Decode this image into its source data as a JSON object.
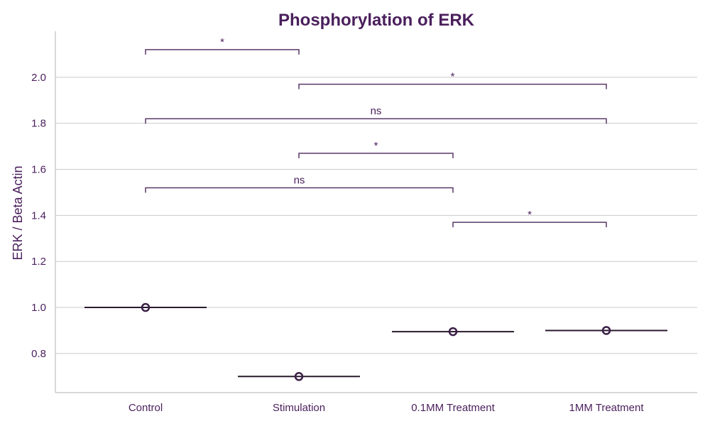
{
  "colors": {
    "text": "#4a1f5c",
    "grid": "#cccccc",
    "axis": "#cccccc",
    "median": "#2a1a2e",
    "marker": "#3a1f46",
    "bracket": "#5a3868"
  },
  "chart_data": {
    "type": "box",
    "title": "Phosphorylation of ERK",
    "xlabel": "",
    "ylabel": "ERK / Beta Actin",
    "categories": [
      "Control",
      "Stimulation",
      "0.1MM Treatment",
      "1MM Treatment"
    ],
    "values": [
      1.0,
      0.7,
      0.895,
      0.9
    ],
    "ylim": [
      0.63,
      2.2
    ],
    "yticks": [
      0.8,
      1.0,
      1.2,
      1.4,
      1.6,
      1.8,
      2.0
    ],
    "grid": "horizontal",
    "marker": "open-circle",
    "significance": [
      {
        "from": 0,
        "to": 1,
        "y": 2.12,
        "label": "*"
      },
      {
        "from": 1,
        "to": 3,
        "y": 1.97,
        "label": "*"
      },
      {
        "from": 0,
        "to": 3,
        "y": 1.82,
        "label": "ns"
      },
      {
        "from": 1,
        "to": 2,
        "y": 1.67,
        "label": "*"
      },
      {
        "from": 0,
        "to": 2,
        "y": 1.52,
        "label": "ns"
      },
      {
        "from": 2,
        "to": 3,
        "y": 1.37,
        "label": "*"
      }
    ]
  }
}
